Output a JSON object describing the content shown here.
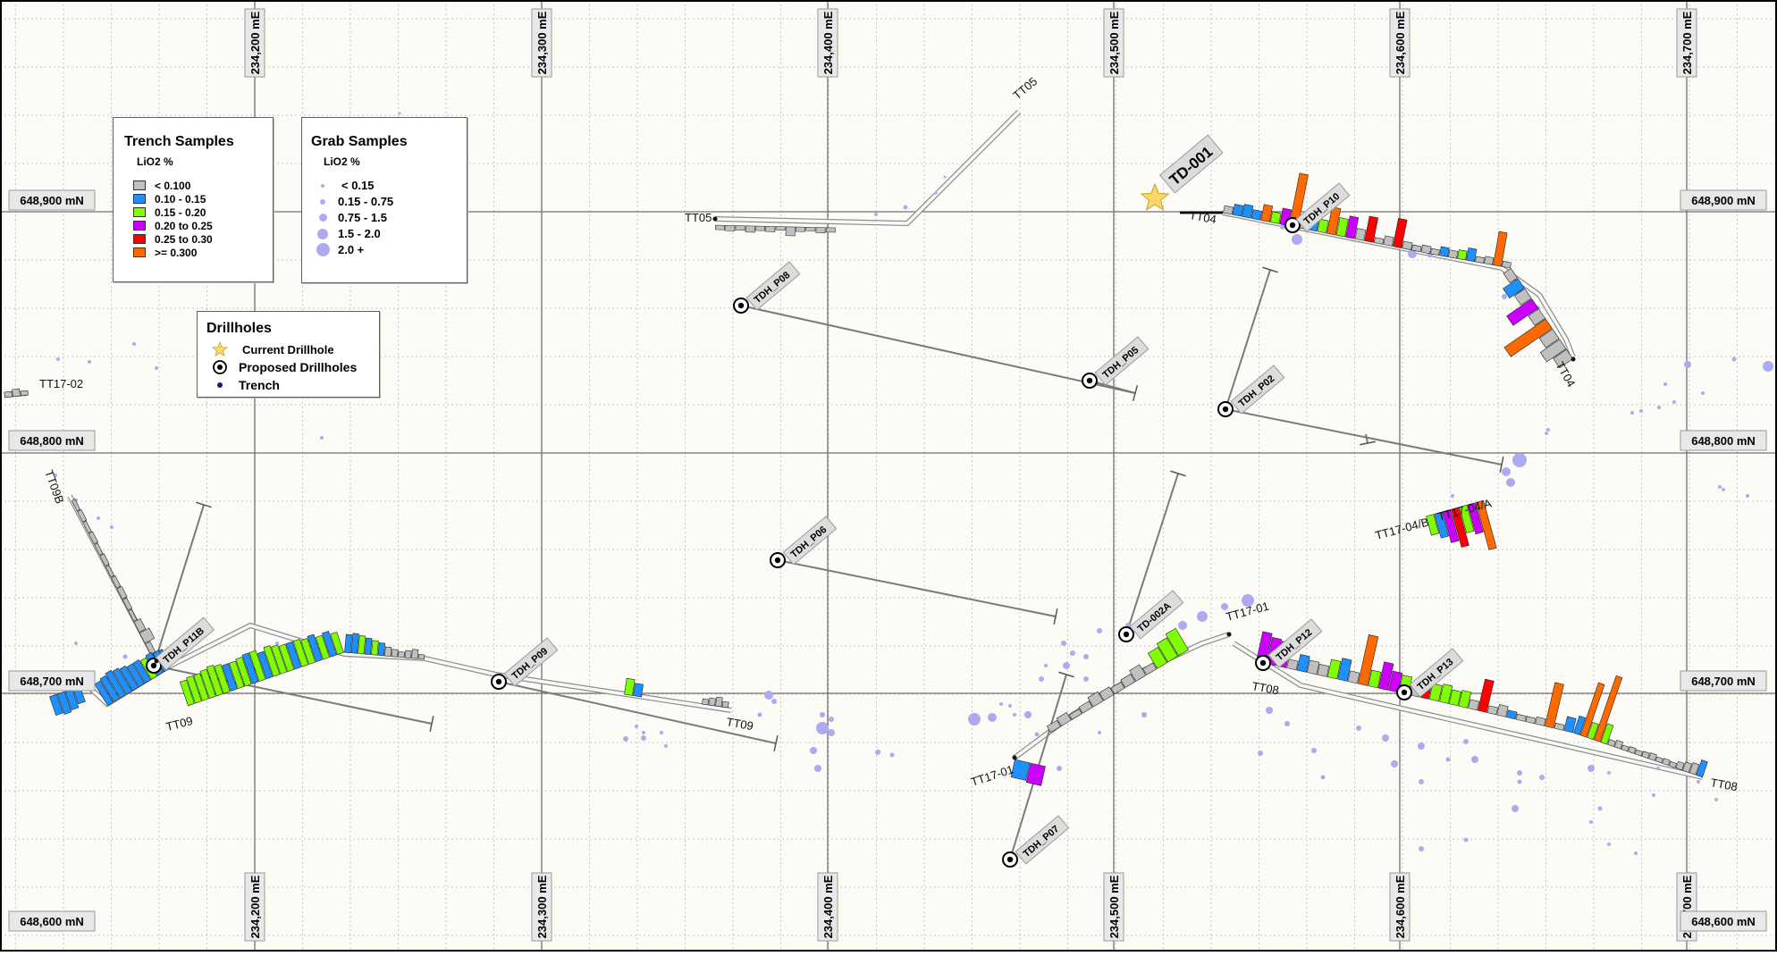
{
  "map": {
    "easting_labels": [
      "234,200 mE",
      "234,300 mE",
      "234,400 mE",
      "234,500 mE",
      "234,600 mE",
      "234,700 mE"
    ],
    "northing_labels": [
      "648,900 mN",
      "648,800 mN",
      "648,700 mN",
      "648,600 mN"
    ],
    "colors": {
      "background": "#fcfbf6",
      "grid_major": "#707070",
      "grid_minor": "#b8b8b8",
      "trench": "#7a7a7a",
      "grab": "#aeaaf0"
    }
  },
  "legend_trench": {
    "title": "Trench Samples",
    "subtitle": "LiO2 %",
    "items": [
      {
        "label": "< 0.100",
        "color": "#c0c0c0"
      },
      {
        "label": "0.10 - 0.15",
        "color": "#1e90ff"
      },
      {
        "label": "0.15 - 0.20",
        "color": "#7fff00"
      },
      {
        "label": "0.20 to 0.25",
        "color": "#cc00ff"
      },
      {
        "label": "0.25 to 0.30",
        "color": "#ff0000"
      },
      {
        "label": ">= 0.300",
        "color": "#ff6a00"
      }
    ]
  },
  "legend_grab": {
    "title": "Grab Samples",
    "subtitle": "LiO2 %",
    "items": [
      {
        "label": "< 0.15"
      },
      {
        "label": "0.15 - 0.75"
      },
      {
        "label": "0.75 - 1.5"
      },
      {
        "label": "1.5 - 2.0"
      },
      {
        "label": "2.0 +"
      }
    ]
  },
  "legend_drill": {
    "title": "Drillholes",
    "items": [
      {
        "label": "Current Drillhole",
        "icon": "star-icon"
      },
      {
        "label": "Proposed Drillholes",
        "icon": "target-icon"
      },
      {
        "label": "Trench",
        "icon": "dot-icon"
      }
    ]
  },
  "trench_labels": [
    "TT05",
    "TT05",
    "TT04",
    "TT04",
    "TT17-02",
    "TT09B",
    "TT09",
    "TT09",
    "TT17-01",
    "TT17-01",
    "TT08",
    "TT08",
    "TT17-04/B",
    "TT17-04/A"
  ],
  "drillholes": {
    "current": "TD-001",
    "proposed": [
      "TDH_P10",
      "TDH_P08",
      "TDH_P05",
      "TDH_P02",
      "TDH_P06",
      "TDH_P11B",
      "TDH_P09",
      "TD-002A",
      "TDH_P12",
      "TDH_P13",
      "TDH_P07"
    ]
  }
}
